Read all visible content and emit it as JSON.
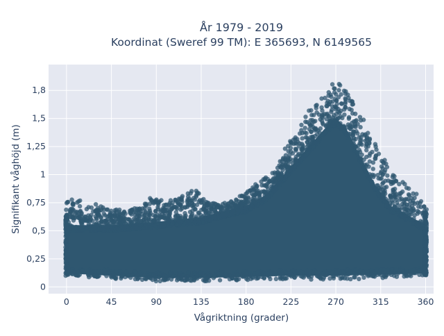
{
  "chart_data": {
    "type": "scatter",
    "title_line1": "År 1979 - 2019",
    "title_line2": "Koordinat (Sweref 99 TM): E 365693, N 6149565",
    "xlabel": "Vågriktning (grader)",
    "ylabel": "Signifikant våghöjd (m)",
    "xlim": [
      -18,
      368
    ],
    "ylim": [
      -0.06,
      1.98
    ],
    "x_ticks": [
      0,
      45,
      90,
      135,
      180,
      225,
      270,
      315,
      360
    ],
    "x_tick_labels": [
      "0",
      "45",
      "90",
      "135",
      "180",
      "225",
      "270",
      "315",
      "360"
    ],
    "y_ticks": [
      0,
      0.25,
      0.5,
      0.75,
      1,
      1.25,
      1.5,
      1.75
    ],
    "y_tick_labels": [
      "0",
      "0,25",
      "0,5",
      "0,75",
      "1",
      "1,25",
      "1,5",
      "1,8"
    ],
    "grid": true,
    "marker_color": "#2f5770",
    "background_color": "#e5e8f1",
    "upper_envelope": [
      [
        0,
        0.78
      ],
      [
        10,
        0.8
      ],
      [
        20,
        0.72
      ],
      [
        30,
        0.74
      ],
      [
        45,
        0.7
      ],
      [
        60,
        0.68
      ],
      [
        75,
        0.72
      ],
      [
        85,
        0.8
      ],
      [
        100,
        0.76
      ],
      [
        120,
        0.82
      ],
      [
        128,
        0.88
      ],
      [
        140,
        0.76
      ],
      [
        155,
        0.74
      ],
      [
        170,
        0.78
      ],
      [
        180,
        0.86
      ],
      [
        190,
        0.92
      ],
      [
        200,
        0.98
      ],
      [
        210,
        1.05
      ],
      [
        220,
        1.25
      ],
      [
        230,
        1.38
      ],
      [
        240,
        1.55
      ],
      [
        250,
        1.62
      ],
      [
        260,
        1.72
      ],
      [
        268,
        1.85
      ],
      [
        275,
        1.8
      ],
      [
        285,
        1.7
      ],
      [
        295,
        1.55
      ],
      [
        305,
        1.35
      ],
      [
        315,
        1.2
      ],
      [
        325,
        1.05
      ],
      [
        335,
        0.95
      ],
      [
        345,
        0.9
      ],
      [
        352,
        0.82
      ],
      [
        360,
        0.7
      ]
    ],
    "lower_envelope": [
      [
        0,
        0.1
      ],
      [
        45,
        0.07
      ],
      [
        90,
        0.05
      ],
      [
        135,
        0.05
      ],
      [
        180,
        0.06
      ],
      [
        225,
        0.07
      ],
      [
        270,
        0.06
      ],
      [
        315,
        0.08
      ],
      [
        360,
        0.1
      ]
    ],
    "dense_top": [
      [
        0,
        0.55
      ],
      [
        45,
        0.55
      ],
      [
        90,
        0.58
      ],
      [
        135,
        0.62
      ],
      [
        160,
        0.68
      ],
      [
        180,
        0.72
      ],
      [
        200,
        0.82
      ],
      [
        220,
        1.02
      ],
      [
        240,
        1.22
      ],
      [
        260,
        1.42
      ],
      [
        270,
        1.5
      ],
      [
        280,
        1.42
      ],
      [
        295,
        1.15
      ],
      [
        310,
        0.9
      ],
      [
        325,
        0.72
      ],
      [
        340,
        0.65
      ],
      [
        360,
        0.55
      ]
    ],
    "dense_bottom": [
      [
        0,
        0.12
      ],
      [
        45,
        0.1
      ],
      [
        90,
        0.08
      ],
      [
        135,
        0.08
      ],
      [
        180,
        0.09
      ],
      [
        225,
        0.1
      ],
      [
        270,
        0.1
      ],
      [
        315,
        0.11
      ],
      [
        360,
        0.12
      ]
    ]
  }
}
